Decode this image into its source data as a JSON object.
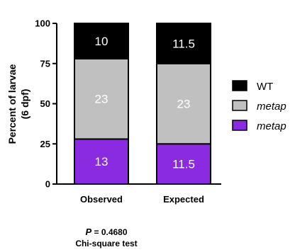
{
  "chart_data": {
    "type": "bar",
    "stacked": true,
    "categories": [
      "Observed",
      "Expected"
    ],
    "series": [
      {
        "name": "metap",
        "color": "#8a2be2",
        "label_color": "#ffffff",
        "values": [
          13,
          11.5
        ],
        "percent": [
          28,
          25
        ],
        "labels": [
          "13",
          "11.5"
        ]
      },
      {
        "name": "metap",
        "color": "#c0c0c0",
        "label_color": "#ffffff",
        "values": [
          23,
          23
        ],
        "percent": [
          50,
          50
        ],
        "labels": [
          "23",
          "23"
        ]
      },
      {
        "name": "WT",
        "color": "#000000",
        "label_color": "#ffffff",
        "values": [
          10,
          11.5
        ],
        "percent": [
          22,
          25
        ],
        "labels": [
          "10",
          "11.5"
        ]
      }
    ],
    "ylabel_line1": "Percent of larvae",
    "ylabel_line2": "(6 dpf)",
    "ylim": [
      0,
      100
    ],
    "yticks": [
      0,
      25,
      50,
      75,
      100
    ],
    "legend": {
      "placement": "right",
      "entries": [
        {
          "label": "WT",
          "color": "#000000",
          "italic": false
        },
        {
          "label": "metap",
          "color": "#c0c0c0",
          "italic": true
        },
        {
          "label": "metap",
          "color": "#8a2be2",
          "italic": true
        }
      ]
    }
  },
  "stats": {
    "p_symbol": "P",
    "p_value": "= 0.4680",
    "test": "Chi-square test"
  }
}
